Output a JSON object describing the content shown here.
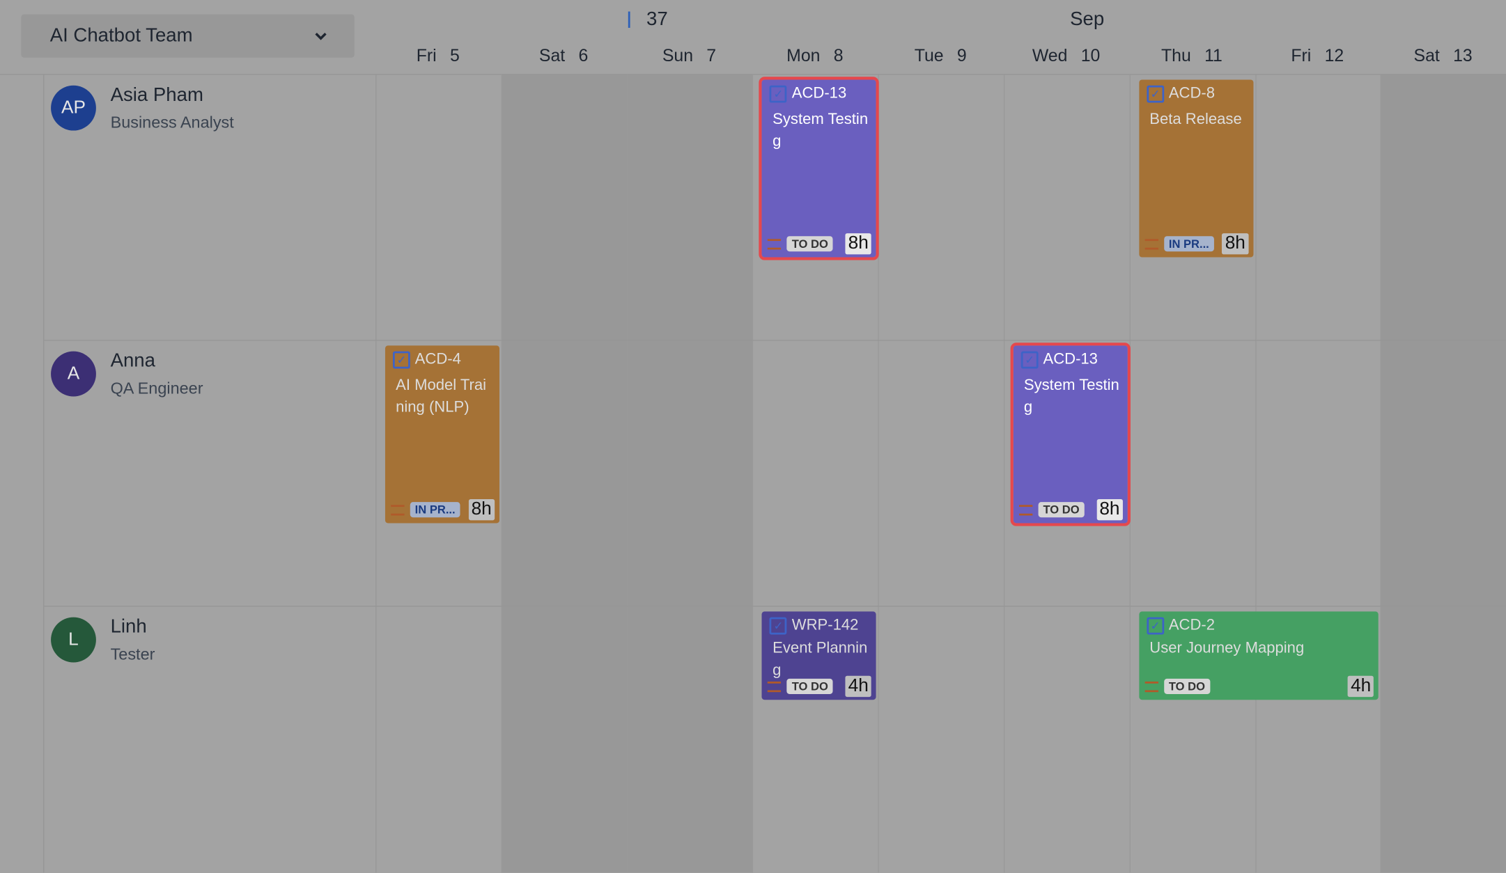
{
  "team_selector": {
    "label": "AI Chatbot Team",
    "icon": "chevron-down-icon"
  },
  "header": {
    "week": "37",
    "month": "Sep"
  },
  "days": [
    {
      "dow": "Fri",
      "day": "5",
      "weekend": false
    },
    {
      "dow": "Sat",
      "day": "6",
      "weekend": true
    },
    {
      "dow": "Sun",
      "day": "7",
      "weekend": true
    },
    {
      "dow": "Mon",
      "day": "8",
      "weekend": false
    },
    {
      "dow": "Tue",
      "day": "9",
      "weekend": false
    },
    {
      "dow": "Wed",
      "day": "10",
      "weekend": false
    },
    {
      "dow": "Thu",
      "day": "11",
      "weekend": false
    },
    {
      "dow": "Fri",
      "day": "12",
      "weekend": false
    },
    {
      "dow": "Sat",
      "day": "13",
      "weekend": true
    }
  ],
  "people": [
    {
      "initials": "AP",
      "name": "Asia Pham",
      "role": "Business Analyst",
      "color": "#1d3f8f"
    },
    {
      "initials": "A",
      "name": "Anna",
      "role": "QA Engineer",
      "color": "#3c2f74"
    },
    {
      "initials": "L",
      "name": "Linh",
      "role": "Tester",
      "color": "#25583a"
    }
  ],
  "tasks": [
    {
      "person": 0,
      "start": 3,
      "span": 1,
      "key": "ACD-13",
      "title": "System Testing",
      "status": "TO DO",
      "hours": "8h",
      "color": "#6a5fbf",
      "selected": true,
      "tall": true
    },
    {
      "person": 0,
      "start": 6,
      "span": 1,
      "key": "ACD-8",
      "title": "Beta Release",
      "status": "IN PR...",
      "hours": "8h",
      "color": "#a57236",
      "selected": false,
      "tall": true
    },
    {
      "person": 1,
      "start": 0,
      "span": 1,
      "key": "ACD-4",
      "title": "AI Model Training (NLP)",
      "status": "IN PR...",
      "hours": "8h",
      "color": "#a57236",
      "selected": false,
      "tall": true
    },
    {
      "person": 1,
      "start": 5,
      "span": 1,
      "key": "ACD-13",
      "title": "System Testing",
      "status": "TO DO",
      "hours": "8h",
      "color": "#6a5fbf",
      "selected": true,
      "tall": true
    },
    {
      "person": 2,
      "start": 3,
      "span": 1,
      "key": "WRP-142",
      "title": "Event Planning",
      "status": "TO DO",
      "hours": "4h",
      "color": "#4e4391",
      "selected": false,
      "tall": false
    },
    {
      "person": 2,
      "start": 6,
      "span": 2,
      "key": "ACD-2",
      "title": "User Journey Mapping",
      "status": "TO DO",
      "hours": "4h",
      "color": "#45a063",
      "selected": false,
      "tall": false
    }
  ]
}
